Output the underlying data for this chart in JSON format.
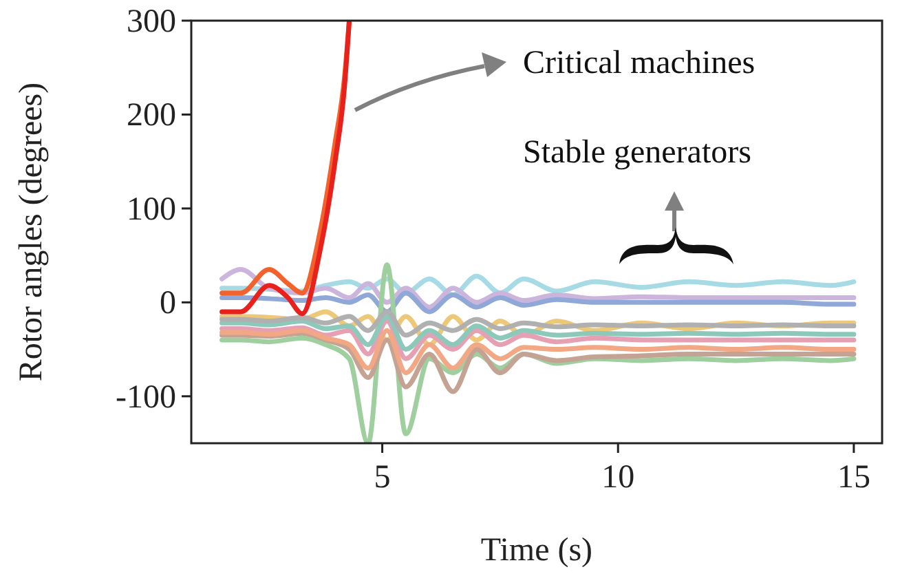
{
  "chart_data": {
    "type": "line",
    "xlabel": "Time (s)",
    "ylabel": "Rotor angles (degrees)",
    "annotations": [
      "Critical machines",
      "Stable generators"
    ],
    "xlim": [
      0.95,
      15.6
    ],
    "ylim": [
      -150,
      300
    ],
    "xticks": [
      5,
      10,
      15
    ],
    "yticks": [
      -100,
      0,
      100,
      200,
      300
    ],
    "grid": false,
    "line_style": "solid",
    "marker": "none",
    "x": [
      1.6,
      2.0,
      2.6,
      3.3,
      3.8,
      4.3,
      4.7,
      5.1,
      5.5,
      6.0,
      6.5,
      7.0,
      7.5,
      8.0,
      8.7,
      9.5,
      10.5,
      11.5,
      12.5,
      13.5,
      14.5,
      15.0
    ],
    "series": [
      {
        "color": "#a6dbe6",
        "values": [
          15,
          15,
          14,
          12,
          18,
          22,
          15,
          25,
          10,
          25,
          8,
          28,
          10,
          25,
          12,
          22,
          16,
          22,
          18,
          22,
          18,
          22
        ]
      },
      {
        "color": "#cbb5dc",
        "values": [
          25,
          35,
          15,
          10,
          15,
          5,
          20,
          0,
          15,
          -5,
          15,
          0,
          10,
          2,
          8,
          4,
          6,
          5,
          5,
          5,
          5,
          5
        ]
      },
      {
        "color": "#90a8d8",
        "values": [
          5,
          5,
          4,
          2,
          5,
          0,
          8,
          -10,
          10,
          -10,
          8,
          -5,
          5,
          -3,
          3,
          0,
          0,
          0,
          0,
          0,
          -2,
          -2
        ]
      },
      {
        "color": "#edc879",
        "values": [
          -15,
          -15,
          -16,
          -18,
          -10,
          -25,
          -15,
          -40,
          -15,
          -45,
          -15,
          -40,
          -20,
          -35,
          -20,
          -30,
          -22,
          -28,
          -22,
          -25,
          -22,
          -22
        ]
      },
      {
        "color": "#9fcf9f",
        "values": [
          -40,
          -40,
          -42,
          -38,
          -45,
          -60,
          -150,
          40,
          -140,
          -60,
          -75,
          -55,
          -70,
          -55,
          -65,
          -60,
          -62,
          -60,
          -62,
          -60,
          -62,
          -60
        ]
      },
      {
        "color": "#e6a0b4",
        "values": [
          -28,
          -28,
          -30,
          -27,
          -35,
          -30,
          -55,
          -20,
          -60,
          -35,
          -50,
          -30,
          -45,
          -35,
          -42,
          -38,
          -40,
          -40,
          -40,
          -40,
          -40,
          -40
        ]
      },
      {
        "color": "#c4a394",
        "values": [
          -35,
          -35,
          -36,
          -33,
          -40,
          -50,
          -80,
          -40,
          -90,
          -55,
          -95,
          -50,
          -75,
          -55,
          -62,
          -58,
          -57,
          -55,
          -55,
          -55,
          -55,
          -55
        ]
      },
      {
        "color": "#8cc9bb",
        "values": [
          -22,
          -22,
          -24,
          -20,
          -28,
          -25,
          -45,
          -15,
          -50,
          -30,
          -45,
          -25,
          -38,
          -30,
          -35,
          -33,
          -34,
          -33,
          -34,
          -33,
          -34,
          -34
        ]
      },
      {
        "color": "#f2a884",
        "values": [
          -32,
          -32,
          -34,
          -30,
          -38,
          -45,
          -70,
          -30,
          -75,
          -45,
          -70,
          -45,
          -60,
          -48,
          -50,
          -48,
          -50,
          -48,
          -50,
          -48,
          -50,
          -50
        ]
      },
      {
        "color": "#b0b0b0",
        "values": [
          -18,
          -18,
          -20,
          -16,
          -22,
          -15,
          -30,
          -10,
          -35,
          -22,
          -30,
          -18,
          -28,
          -22,
          -26,
          -24,
          -25,
          -24,
          -25,
          -24,
          -25,
          -25
        ]
      },
      {
        "color": "#f3622d",
        "x": [
          1.6,
          2.0,
          2.6,
          3.0,
          3.3,
          3.7,
          4.0,
          4.2,
          4.3
        ],
        "values": [
          10,
          10,
          35,
          20,
          10,
          80,
          170,
          240,
          300
        ]
      },
      {
        "color": "#e8211d",
        "x": [
          1.6,
          2.0,
          2.6,
          3.0,
          3.3,
          3.7,
          4.0,
          4.2,
          4.3
        ],
        "values": [
          -10,
          -10,
          18,
          5,
          -12,
          60,
          150,
          230,
          300
        ]
      }
    ]
  }
}
